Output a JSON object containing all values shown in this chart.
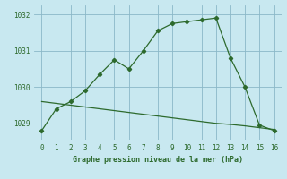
{
  "line1_x": [
    0,
    1,
    2,
    3,
    4,
    5,
    6,
    7,
    8,
    9,
    10,
    11,
    12,
    13,
    14,
    15,
    16
  ],
  "line1_y": [
    1028.8,
    1029.4,
    1029.6,
    1029.9,
    1030.35,
    1030.75,
    1030.5,
    1031.0,
    1031.55,
    1031.75,
    1031.8,
    1031.85,
    1031.9,
    1030.8,
    1030.0,
    1028.95,
    1028.8
  ],
  "line2_x": [
    0,
    1,
    2,
    3,
    4,
    5,
    6,
    7,
    8,
    9,
    10,
    11,
    12,
    13,
    14,
    15,
    16
  ],
  "line2_y": [
    1029.6,
    1029.55,
    1029.5,
    1029.45,
    1029.4,
    1029.35,
    1029.3,
    1029.25,
    1029.2,
    1029.15,
    1029.1,
    1029.05,
    1029.0,
    1028.97,
    1028.93,
    1028.88,
    1028.83
  ],
  "color": "#2d6a2d",
  "bg_color": "#c8e8f0",
  "grid_color": "#8bb8c8",
  "xlabel": "Graphe pression niveau de la mer (hPa)",
  "yticks": [
    1029,
    1030,
    1031,
    1032
  ],
  "xticks": [
    0,
    1,
    2,
    3,
    4,
    5,
    6,
    7,
    8,
    9,
    10,
    11,
    12,
    13,
    14,
    15,
    16
  ],
  "ylim": [
    1028.55,
    1032.25
  ],
  "xlim": [
    -0.5,
    16.5
  ]
}
